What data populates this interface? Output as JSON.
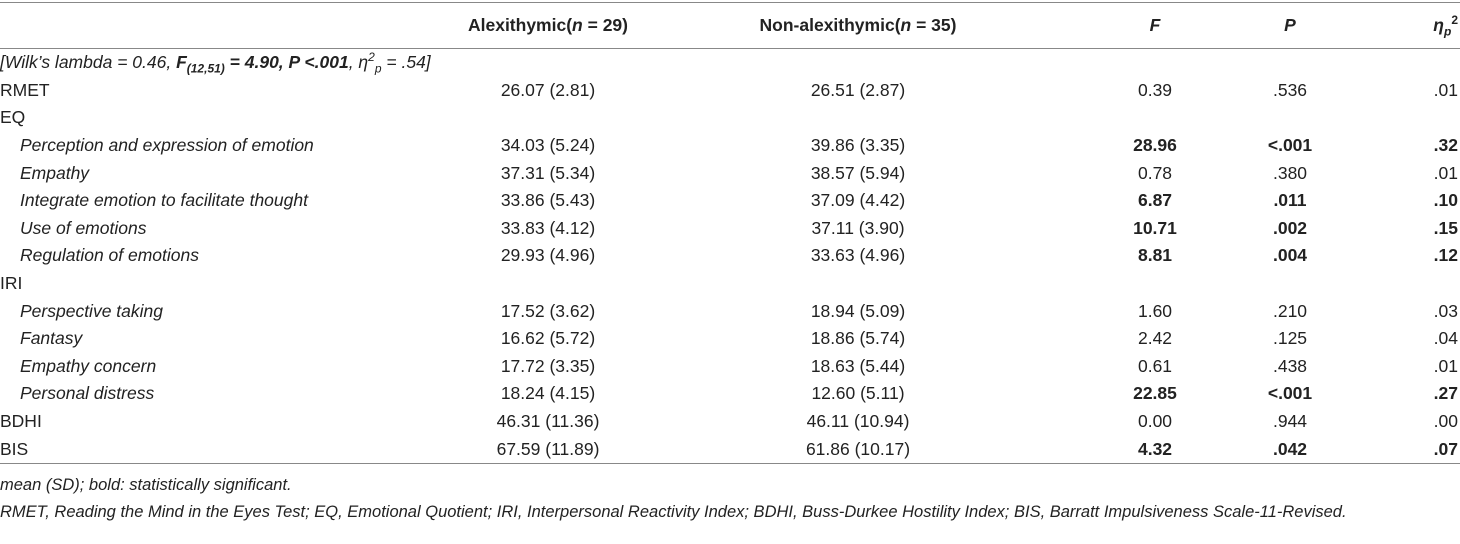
{
  "header": [
    [
      "Alexithymic(",
      "n",
      " = 29)"
    ],
    [
      "Non-alexithymic(",
      "n",
      " = 35)"
    ],
    [
      "F"
    ],
    [
      "P"
    ],
    [
      "η",
      "p",
      "2"
    ]
  ],
  "wilks": [
    "[Wilk’s lambda = 0.46, ",
    "F",
    "(12,51)",
    " = 4.90, P <.001",
    ", η",
    "2",
    "p",
    " = .54]"
  ],
  "rows": [
    {
      "label": "RMET",
      "cells": [
        "26.07 (2.81)",
        "26.51 (2.87)",
        "0.39",
        ".536",
        ".01"
      ]
    },
    {
      "label": "EQ",
      "items": [
        {
          "label": "Perception and expression of emotion",
          "cells": [
            "34.03 (5.24)",
            "39.86 (3.35)",
            "28.96",
            "<.001",
            ".32"
          ],
          "significant": true
        },
        {
          "label": "Empathy",
          "cells": [
            "37.31 (5.34)",
            "38.57 (5.94)",
            "0.78",
            ".380",
            ".01"
          ]
        },
        {
          "label": "Integrate emotion to facilitate thought",
          "cells": [
            "33.86 (5.43)",
            "37.09 (4.42)",
            "6.87",
            ".011",
            ".10"
          ],
          "significant": true
        },
        {
          "label": "Use of emotions",
          "cells": [
            "33.83 (4.12)",
            "37.11 (3.90)",
            "10.71",
            ".002",
            ".15"
          ],
          "significant": true
        },
        {
          "label": "Regulation of emotions",
          "cells": [
            "29.93 (4.96)",
            "33.63 (4.96)",
            "8.81",
            ".004",
            ".12"
          ],
          "significant": true
        }
      ]
    },
    {
      "label": "IRI",
      "items": [
        {
          "label": "Perspective taking",
          "cells": [
            "17.52 (3.62)",
            "18.94 (5.09)",
            "1.60",
            ".210",
            ".03"
          ]
        },
        {
          "label": "Fantasy",
          "cells": [
            "16.62 (5.72)",
            "18.86 (5.74)",
            "2.42",
            ".125",
            ".04"
          ]
        },
        {
          "label": "Empathy concern",
          "cells": [
            "17.72 (3.35)",
            "18.63 (5.44)",
            "0.61",
            ".438",
            ".01"
          ]
        },
        {
          "label": "Personal distress",
          "cells": [
            "18.24 (4.15)",
            "12.60 (5.11)",
            "22.85",
            "<.001",
            ".27"
          ],
          "significant": true
        }
      ]
    },
    {
      "label": "BDHI",
      "cells": [
        "46.31 (11.36)",
        "46.11 (10.94)",
        "0.00",
        ".944",
        ".00"
      ]
    },
    {
      "label": "BIS",
      "cells": [
        "67.59 (11.89)",
        "61.86 (10.17)",
        "4.32",
        ".042",
        ".07"
      ],
      "significant": true
    }
  ],
  "notes": [
    "mean (SD); bold: statistically significant.",
    "RMET, Reading the Mind in the Eyes Test; EQ, Emotional Quotient; IRI, Interpersonal Reactivity Index; BDHI, Buss-Durkee Hostility Index; BIS, Barratt Impulsiveness Scale-11-Revised."
  ]
}
